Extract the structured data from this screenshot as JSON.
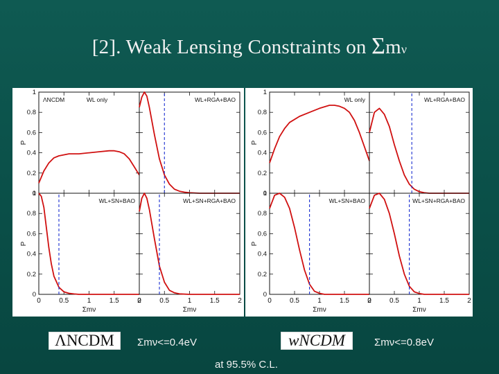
{
  "slide": {
    "title_prefix": "[2]. Weak Lensing Constraints on ",
    "title_sigma": "Σ",
    "title_m": "m",
    "title_nu": "ν"
  },
  "models": {
    "left_name": "ΛNCDM",
    "right_name": "wNCDM",
    "left_result": "Σmν<=0.4eV",
    "right_result": "Σmν<=0.8eV"
  },
  "footnote": "at 95.5% C.L.",
  "chart_data": [
    {
      "type": "line",
      "model": "ΛNCDM",
      "xlabel": "Σm_ν",
      "ylabel": "P",
      "xlim": [
        0,
        2
      ],
      "ylim": [
        0,
        1
      ],
      "xticks": [
        "0",
        "0.5",
        "1",
        "1.5",
        "2"
      ],
      "yticks": [
        "0",
        "0.2",
        "0.4",
        "0.6",
        "0.8",
        "1"
      ],
      "panels": [
        {
          "label": "ΛNCDM",
          "sublabel": "WL only",
          "limit": null,
          "x": [
            0,
            0.1,
            0.2,
            0.3,
            0.4,
            0.6,
            0.8,
            1.0,
            1.2,
            1.4,
            1.5,
            1.6,
            1.7,
            1.8,
            1.9,
            2.0
          ],
          "y": [
            0.1,
            0.22,
            0.3,
            0.35,
            0.37,
            0.39,
            0.39,
            0.4,
            0.41,
            0.42,
            0.42,
            0.41,
            0.39,
            0.34,
            0.26,
            0.18
          ]
        },
        {
          "label": "WL+RGA+BAO",
          "sublabel": "",
          "limit": 0.5,
          "x": [
            0,
            0.05,
            0.1,
            0.15,
            0.2,
            0.3,
            0.4,
            0.5,
            0.6,
            0.7,
            0.8,
            0.9,
            1.0,
            1.2,
            1.5,
            2.0
          ],
          "y": [
            0.85,
            0.95,
            1.0,
            0.96,
            0.85,
            0.58,
            0.34,
            0.18,
            0.09,
            0.04,
            0.02,
            0.01,
            0.005,
            0,
            0,
            0
          ]
        },
        {
          "label": "WL+SN+BAO",
          "sublabel": "",
          "limit": 0.4,
          "x": [
            0,
            0.05,
            0.1,
            0.15,
            0.2,
            0.25,
            0.3,
            0.4,
            0.5,
            0.6,
            0.7,
            0.8,
            1.0,
            1.5,
            2.0
          ],
          "y": [
            1.0,
            0.97,
            0.86,
            0.66,
            0.46,
            0.3,
            0.18,
            0.07,
            0.025,
            0.01,
            0.004,
            0,
            0,
            0,
            0
          ]
        },
        {
          "label": "WL+SN+RGA+BAO",
          "sublabel": "",
          "limit": 0.4,
          "x": [
            0,
            0.05,
            0.1,
            0.15,
            0.2,
            0.3,
            0.4,
            0.5,
            0.6,
            0.7,
            0.8,
            1.0,
            1.5,
            2.0
          ],
          "y": [
            0.82,
            0.95,
            1.0,
            0.95,
            0.84,
            0.55,
            0.28,
            0.12,
            0.04,
            0.015,
            0.005,
            0,
            0,
            0
          ]
        }
      ]
    },
    {
      "type": "line",
      "model": "wNCDM",
      "xlabel": "Σm_ν",
      "ylabel": "P",
      "xlim": [
        0,
        2
      ],
      "ylim": [
        0,
        1
      ],
      "xticks": [
        "0",
        "0.5",
        "1",
        "1.5",
        "2"
      ],
      "yticks": [
        "0",
        "0.2",
        "0.4",
        "0.6",
        "0.8",
        "1"
      ],
      "panels": [
        {
          "label": "WL only",
          "sublabel": "",
          "limit": null,
          "x": [
            0,
            0.1,
            0.2,
            0.3,
            0.4,
            0.6,
            0.8,
            1.0,
            1.2,
            1.3,
            1.4,
            1.5,
            1.6,
            1.7,
            1.8,
            1.9,
            2.0
          ],
          "y": [
            0.3,
            0.44,
            0.56,
            0.64,
            0.7,
            0.76,
            0.8,
            0.84,
            0.87,
            0.87,
            0.86,
            0.84,
            0.8,
            0.72,
            0.6,
            0.46,
            0.32
          ]
        },
        {
          "label": "WL+RGA+BAO",
          "sublabel": "",
          "limit": 0.85,
          "x": [
            0,
            0.1,
            0.2,
            0.3,
            0.4,
            0.5,
            0.6,
            0.7,
            0.8,
            0.9,
            1.0,
            1.1,
            1.2,
            1.5,
            2.0
          ],
          "y": [
            0.6,
            0.8,
            0.84,
            0.78,
            0.66,
            0.48,
            0.32,
            0.18,
            0.09,
            0.04,
            0.015,
            0.005,
            0,
            0,
            0
          ]
        },
        {
          "label": "WL+SN+BAO",
          "sublabel": "",
          "limit": 0.8,
          "x": [
            0,
            0.1,
            0.2,
            0.3,
            0.4,
            0.5,
            0.6,
            0.7,
            0.8,
            0.9,
            1.0,
            1.1,
            1.5,
            2.0
          ],
          "y": [
            0.85,
            0.98,
            1.0,
            0.96,
            0.85,
            0.66,
            0.44,
            0.24,
            0.1,
            0.03,
            0.01,
            0,
            0,
            0
          ]
        },
        {
          "label": "WL+SN+RGA+BAO",
          "sublabel": "",
          "limit": 0.8,
          "x": [
            0,
            0.1,
            0.2,
            0.3,
            0.4,
            0.5,
            0.6,
            0.7,
            0.8,
            0.9,
            1.0,
            1.1,
            1.5,
            2.0
          ],
          "y": [
            0.85,
            0.98,
            1.0,
            0.94,
            0.8,
            0.6,
            0.38,
            0.2,
            0.08,
            0.025,
            0.008,
            0,
            0,
            0
          ]
        }
      ]
    }
  ]
}
